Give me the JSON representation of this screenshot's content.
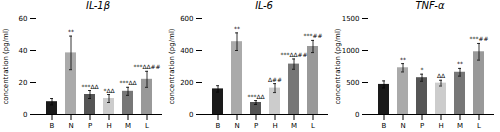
{
  "chart_data": [
    {
      "type": "bar",
      "title": "IL-1β",
      "ylabel": "concentration (pg/ml)",
      "categories": [
        "B",
        "N",
        "P",
        "H",
        "M",
        "L"
      ],
      "values": [
        8.0,
        38.5,
        12.5,
        10.0,
        14.5,
        22.0
      ],
      "errors": [
        2.0,
        10.5,
        2.5,
        2.5,
        2.5,
        5.0
      ],
      "colors": [
        "#1a1a1a",
        "#aaaaaa",
        "#555555",
        "#cccccc",
        "#777777",
        "#999999"
      ],
      "annotations": [
        null,
        "**",
        "***ΔΔ",
        "*ΔΔ",
        "***ΔΔ",
        "***ΔΔ##"
      ],
      "ylim": [
        0,
        60
      ],
      "yticks": [
        0,
        20,
        40,
        60
      ]
    },
    {
      "type": "bar",
      "title": "IL-6",
      "ylabel": "concentration (pg/ml)",
      "categories": [
        "B",
        "N",
        "P",
        "H",
        "M",
        "L"
      ],
      "values": [
        160.0,
        455.0,
        75.0,
        165.0,
        315.0,
        425.0
      ],
      "errors": [
        20.0,
        55.0,
        12.0,
        28.0,
        32.0,
        38.0
      ],
      "colors": [
        "#1a1a1a",
        "#aaaaaa",
        "#555555",
        "#cccccc",
        "#777777",
        "#999999"
      ],
      "annotations": [
        null,
        "**",
        "***ΔΔ",
        "Δ##",
        "***ΔΔ##",
        "***##"
      ],
      "ylim": [
        0,
        600
      ],
      "yticks": [
        0,
        200,
        400,
        600
      ]
    },
    {
      "type": "bar",
      "title": "TNF-α",
      "ylabel": "concentration (pg/ml)",
      "categories": [
        "B",
        "N",
        "P",
        "H",
        "M",
        "L"
      ],
      "values": [
        470.0,
        730.0,
        575.0,
        490.0,
        660.0,
        980.0
      ],
      "errors": [
        55.0,
        65.0,
        55.0,
        45.0,
        60.0,
        130.0
      ],
      "colors": [
        "#1a1a1a",
        "#aaaaaa",
        "#555555",
        "#cccccc",
        "#777777",
        "#999999"
      ],
      "annotations": [
        null,
        "**",
        "*",
        "ΔΔ",
        "**",
        "***##"
      ],
      "ylim": [
        0,
        1500
      ],
      "yticks": [
        0,
        500,
        1000,
        1500
      ]
    }
  ]
}
